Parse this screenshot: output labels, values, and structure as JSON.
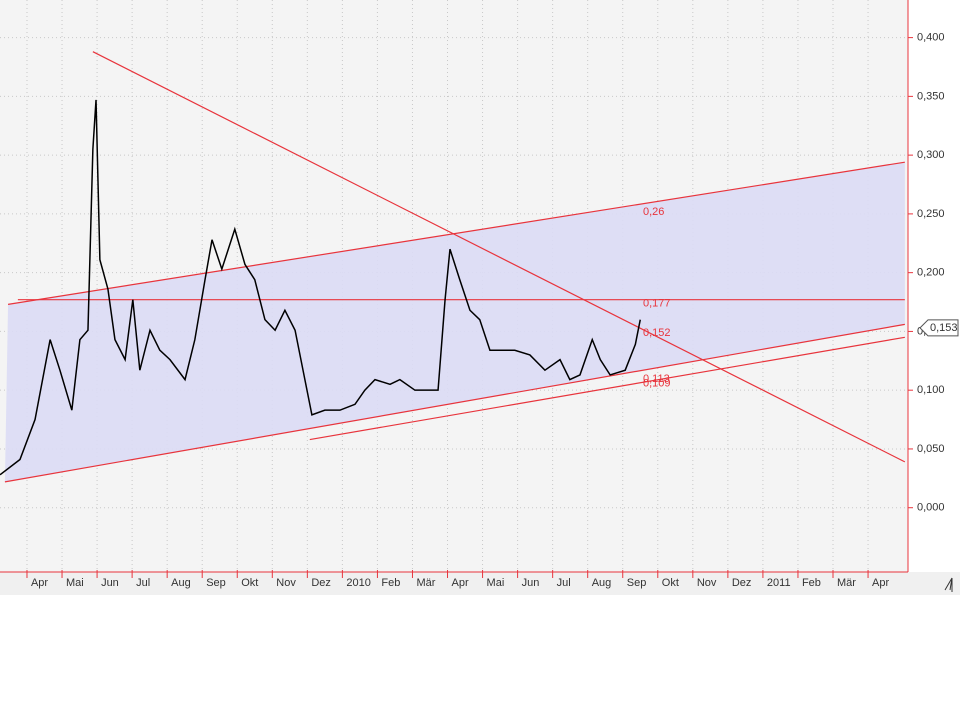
{
  "chart_data": {
    "type": "line",
    "x": [
      2.23,
      2.8,
      3.23,
      3.66,
      3.94,
      4.28,
      4.51,
      4.74,
      4.88,
      4.97,
      5.08,
      5.31,
      5.51,
      5.8,
      6.02,
      6.22,
      6.51,
      6.79,
      7.08,
      7.51,
      7.79,
      8.08,
      8.28,
      8.56,
      8.93,
      9.22,
      9.5,
      9.79,
      10.08,
      10.36,
      10.65,
      10.93,
      11.13,
      11.5,
      11.93,
      12.36,
      12.64,
      12.93,
      13.36,
      13.64,
      14.07,
      14.73,
      14.93,
      15.07,
      15.35,
      15.64,
      15.92,
      16.21,
      16.64,
      16.92,
      17.35,
      17.78,
      18.21,
      18.49,
      18.78,
      19.13,
      19.36,
      19.64,
      20.07,
      20.36,
      20.5
    ],
    "series": [
      {
        "color": "#000000",
        "values": [
          0.028,
          0.041,
          0.075,
          0.143,
          0.117,
          0.083,
          0.143,
          0.151,
          0.305,
          0.347,
          0.211,
          0.186,
          0.143,
          0.126,
          0.177,
          0.117,
          0.151,
          0.134,
          0.126,
          0.109,
          0.143,
          0.194,
          0.228,
          0.203,
          0.237,
          0.207,
          0.194,
          0.16,
          0.151,
          0.168,
          0.151,
          0.109,
          0.079,
          0.083,
          0.083,
          0.088,
          0.1,
          0.109,
          0.105,
          0.109,
          0.1,
          0.1,
          0.177,
          0.22,
          0.194,
          0.168,
          0.16,
          0.134,
          0.134,
          0.134,
          0.13,
          0.117,
          0.126,
          0.109,
          0.113,
          0.143,
          0.126,
          0.113,
          0.117,
          0.139,
          0.16
        ]
      }
    ],
    "trendlines": [
      {
        "color": "#e8343c",
        "x": [
          2.46,
          28.05
        ],
        "y": [
          0.173,
          0.294
        ]
      },
      {
        "color": "#e8343c",
        "x": [
          2.37,
          28.05
        ],
        "y": [
          0.022,
          0.156
        ]
      },
      {
        "color": "#e8343c",
        "x": [
          11.07,
          28.05
        ],
        "y": [
          0.058,
          0.145
        ]
      },
      {
        "color": "#e8343c",
        "x": [
          4.88,
          28.05
        ],
        "y": [
          0.388,
          0.039
        ]
      },
      {
        "color": "#e8343c",
        "x": [
          2.74,
          28.05
        ],
        "y": [
          0.177,
          0.177
        ]
      }
    ],
    "channel_color": "#dcdcf5",
    "annotations": [
      {
        "value": 0.26,
        "label": "0,26"
      },
      {
        "value": 0.177,
        "label": "0,177"
      },
      {
        "value": 0.152,
        "label": "0,152"
      },
      {
        "value": 0.113,
        "label": "0,113"
      },
      {
        "value": 0.109,
        "label": "0,109"
      }
    ],
    "last_value": {
      "value": 0.153,
      "label": "0,153"
    },
    "xlim": [
      2.23,
      28.14
    ],
    "ylim": [
      -0.053,
      0.432
    ],
    "yticks": [
      {
        "value": 0,
        "label": "0,000"
      },
      {
        "value": 0.05,
        "label": "0,050"
      },
      {
        "value": 0.1,
        "label": "0,100"
      },
      {
        "value": 0.15,
        "label": "0,150"
      },
      {
        "value": 0.2,
        "label": "0,200"
      },
      {
        "value": 0.25,
        "label": "0,250"
      },
      {
        "value": 0.3,
        "label": "0,300"
      },
      {
        "value": 0.35,
        "label": "0,350"
      },
      {
        "value": 0.4,
        "label": "0,400"
      }
    ],
    "xticks": [
      {
        "value": 3,
        "label": "Apr"
      },
      {
        "value": 4,
        "label": "Mai"
      },
      {
        "value": 5,
        "label": "Jun"
      },
      {
        "value": 6,
        "label": "Jul"
      },
      {
        "value": 7,
        "label": "Aug"
      },
      {
        "value": 8,
        "label": "Sep"
      },
      {
        "value": 9,
        "label": "Okt"
      },
      {
        "value": 10,
        "label": "Nov"
      },
      {
        "value": 11,
        "label": "Dez"
      },
      {
        "value": 12,
        "label": "2010"
      },
      {
        "value": 13,
        "label": "Feb"
      },
      {
        "value": 14,
        "label": "Mär"
      },
      {
        "value": 15,
        "label": "Apr"
      },
      {
        "value": 16,
        "label": "Mai"
      },
      {
        "value": 17,
        "label": "Jun"
      },
      {
        "value": 18,
        "label": "Jul"
      },
      {
        "value": 19,
        "label": "Aug"
      },
      {
        "value": 20,
        "label": "Sep"
      },
      {
        "value": 21,
        "label": "Okt"
      },
      {
        "value": 22,
        "label": "Nov"
      },
      {
        "value": 23,
        "label": "Dez"
      },
      {
        "value": 24,
        "label": "2011"
      },
      {
        "value": 25,
        "label": "Feb"
      },
      {
        "value": 26,
        "label": "Mär"
      },
      {
        "value": 27,
        "label": "Apr"
      }
    ],
    "grid": true
  }
}
